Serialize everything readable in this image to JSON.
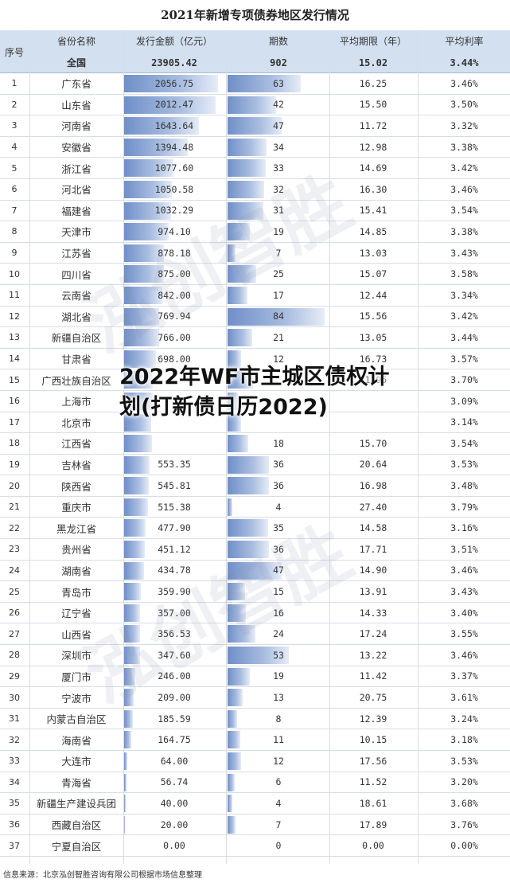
{
  "title": "2021年新增专项债券地区发行情况",
  "overlay_title": "2022年WF市主城区债权计划(打新债日历2022)",
  "source_note": "信息来源：北京泓创智胜咨询有限公司根据市场信息整理",
  "watermark": "泓创智胜",
  "header": {
    "idx": "序号",
    "province": "省份名称",
    "amount": "发行金额（亿元）",
    "count": "期数",
    "term": "平均期限（年）",
    "rate": "平均利率"
  },
  "total": {
    "province": "全国",
    "amount": "23905.42",
    "count": "902",
    "term": "15.02",
    "rate": "3.44%"
  },
  "rows": [
    {
      "idx": "1",
      "province": "广东省",
      "amount": "2056.75",
      "count": "63",
      "term": "16.25",
      "rate": "3.46%"
    },
    {
      "idx": "2",
      "province": "山东省",
      "amount": "2012.47",
      "count": "42",
      "term": "15.50",
      "rate": "3.50%"
    },
    {
      "idx": "3",
      "province": "河南省",
      "amount": "1643.64",
      "count": "47",
      "term": "11.72",
      "rate": "3.32%"
    },
    {
      "idx": "4",
      "province": "安徽省",
      "amount": "1394.48",
      "count": "34",
      "term": "12.98",
      "rate": "3.38%"
    },
    {
      "idx": "5",
      "province": "浙江省",
      "amount": "1077.60",
      "count": "33",
      "term": "14.69",
      "rate": "3.42%"
    },
    {
      "idx": "6",
      "province": "河北省",
      "amount": "1050.58",
      "count": "32",
      "term": "16.30",
      "rate": "3.46%"
    },
    {
      "idx": "7",
      "province": "福建省",
      "amount": "1032.29",
      "count": "31",
      "term": "15.41",
      "rate": "3.54%"
    },
    {
      "idx": "8",
      "province": "天津市",
      "amount": "974.10",
      "count": "19",
      "term": "14.85",
      "rate": "3.38%"
    },
    {
      "idx": "9",
      "province": "江苏省",
      "amount": "878.18",
      "count": "7",
      "term": "13.03",
      "rate": "3.43%"
    },
    {
      "idx": "10",
      "province": "四川省",
      "amount": "875.00",
      "count": "25",
      "term": "15.07",
      "rate": "3.58%"
    },
    {
      "idx": "11",
      "province": "云南省",
      "amount": "842.00",
      "count": "17",
      "term": "12.44",
      "rate": "3.34%"
    },
    {
      "idx": "12",
      "province": "湖北省",
      "amount": "769.94",
      "count": "84",
      "term": "15.56",
      "rate": "3.42%"
    },
    {
      "idx": "13",
      "province": "新疆自治区",
      "amount": "766.00",
      "count": "21",
      "term": "13.05",
      "rate": "3.44%"
    },
    {
      "idx": "14",
      "province": "甘肃省",
      "amount": "698.00",
      "count": "12",
      "term": "16.73",
      "rate": "3.57%"
    },
    {
      "idx": "15",
      "province": "广西壮族自治区",
      "amount": "",
      "count": "",
      "term": "21.95",
      "rate": "3.70%"
    },
    {
      "idx": "16",
      "province": "上海市",
      "amount": "",
      "count": "",
      "term": "",
      "rate": "3.09%"
    },
    {
      "idx": "17",
      "province": "北京市",
      "amount": "",
      "count": "",
      "term": "",
      "rate": "3.14%"
    },
    {
      "idx": "18",
      "province": "江西省",
      "amount": "",
      "count": "18",
      "term": "15.70",
      "rate": "3.54%"
    },
    {
      "idx": "19",
      "province": "吉林省",
      "amount": "553.35",
      "count": "36",
      "term": "20.64",
      "rate": "3.53%"
    },
    {
      "idx": "20",
      "province": "陕西省",
      "amount": "545.81",
      "count": "36",
      "term": "16.98",
      "rate": "3.48%"
    },
    {
      "idx": "21",
      "province": "重庆市",
      "amount": "515.38",
      "count": "4",
      "term": "27.40",
      "rate": "3.79%"
    },
    {
      "idx": "22",
      "province": "黑龙江省",
      "amount": "477.90",
      "count": "35",
      "term": "14.58",
      "rate": "3.16%"
    },
    {
      "idx": "23",
      "province": "贵州省",
      "amount": "451.12",
      "count": "36",
      "term": "17.71",
      "rate": "3.51%"
    },
    {
      "idx": "24",
      "province": "湖南省",
      "amount": "434.78",
      "count": "47",
      "term": "14.90",
      "rate": "3.46%"
    },
    {
      "idx": "25",
      "province": "青岛市",
      "amount": "359.90",
      "count": "15",
      "term": "13.91",
      "rate": "3.43%"
    },
    {
      "idx": "26",
      "province": "辽宁省",
      "amount": "357.00",
      "count": "16",
      "term": "14.33",
      "rate": "3.40%"
    },
    {
      "idx": "27",
      "province": "山西省",
      "amount": "356.53",
      "count": "24",
      "term": "17.24",
      "rate": "3.55%"
    },
    {
      "idx": "28",
      "province": "深圳市",
      "amount": "347.60",
      "count": "53",
      "term": "13.22",
      "rate": "3.46%"
    },
    {
      "idx": "29",
      "province": "厦门市",
      "amount": "246.00",
      "count": "19",
      "term": "11.42",
      "rate": "3.37%"
    },
    {
      "idx": "30",
      "province": "宁波市",
      "amount": "209.00",
      "count": "13",
      "term": "20.75",
      "rate": "3.61%"
    },
    {
      "idx": "31",
      "province": "内蒙古自治区",
      "amount": "185.59",
      "count": "8",
      "term": "12.39",
      "rate": "3.24%"
    },
    {
      "idx": "32",
      "province": "海南省",
      "amount": "164.75",
      "count": "11",
      "term": "10.15",
      "rate": "3.18%"
    },
    {
      "idx": "33",
      "province": "大连市",
      "amount": "64.00",
      "count": "12",
      "term": "17.56",
      "rate": "3.53%"
    },
    {
      "idx": "34",
      "province": "青海省",
      "amount": "56.74",
      "count": "6",
      "term": "11.52",
      "rate": "3.20%"
    },
    {
      "idx": "35",
      "province": "新疆生产建设兵团",
      "amount": "40.00",
      "count": "4",
      "term": "18.61",
      "rate": "3.68%"
    },
    {
      "idx": "36",
      "province": "西藏自治区",
      "amount": "20.00",
      "count": "7",
      "term": "17.89",
      "rate": "3.76%"
    },
    {
      "idx": "37",
      "province": "宁夏自治区",
      "amount": "0.00",
      "count": "0",
      "term": "0.00",
      "rate": "0.00%"
    }
  ],
  "bars": {
    "amount_max": 2056.75,
    "count_max": 84,
    "amount_fills": [
      2056.75,
      2012.47,
      1643.64,
      1394.48,
      1077.6,
      1050.58,
      1032.29,
      974.1,
      878.18,
      875.0,
      842.0,
      769.94,
      766.0,
      698.0,
      620,
      625,
      600,
      614,
      553.35,
      545.81,
      515.38,
      477.9,
      451.12,
      434.78,
      359.9,
      357.0,
      356.53,
      347.6,
      246.0,
      209.0,
      185.59,
      164.75,
      64.0,
      56.74,
      40.0,
      20.0,
      0
    ],
    "count_fills": [
      63,
      42,
      47,
      34,
      33,
      32,
      31,
      19,
      7,
      25,
      17,
      84,
      21,
      12,
      22,
      9,
      12,
      18,
      36,
      36,
      4,
      35,
      36,
      47,
      15,
      16,
      24,
      53,
      19,
      13,
      8,
      11,
      12,
      6,
      4,
      7,
      0
    ],
    "bar_color": "#6f8fc8"
  }
}
